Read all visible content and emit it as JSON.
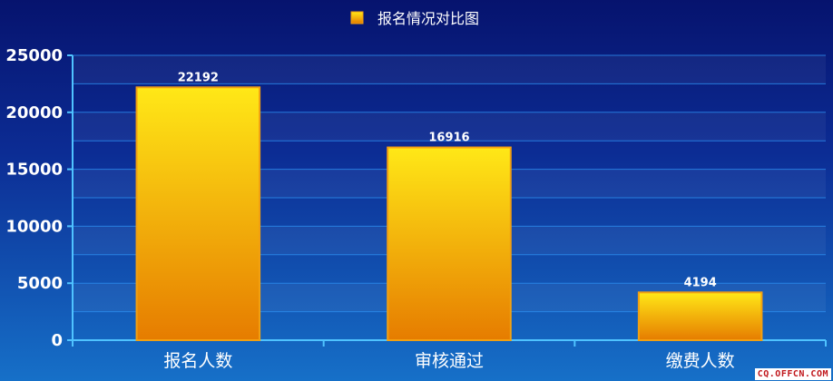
{
  "chart_data": {
    "type": "bar",
    "title": "",
    "legend": {
      "position": "top-center",
      "entries": [
        "报名情况对比图"
      ]
    },
    "categories": [
      "报名人数",
      "审核通过",
      "缴费人数"
    ],
    "series": [
      {
        "name": "报名情况对比图",
        "values": [
          22192,
          16916,
          4194
        ]
      }
    ],
    "ylim": [
      0,
      25000
    ],
    "yticks": [
      "0",
      "5000",
      "10000",
      "15000",
      "20000",
      "25000"
    ],
    "grid": true,
    "data_labels": true,
    "colors": {
      "background_top": "#071a78",
      "background_bottom": "#1568c4",
      "bar_top": "#ffe817",
      "bar_bottom": "#e67c00",
      "bar_border": "#f2a011",
      "grid": "#2c8ff0",
      "axis": "#4fc3ff"
    }
  },
  "watermark": "CQ.OFFCN.COM"
}
